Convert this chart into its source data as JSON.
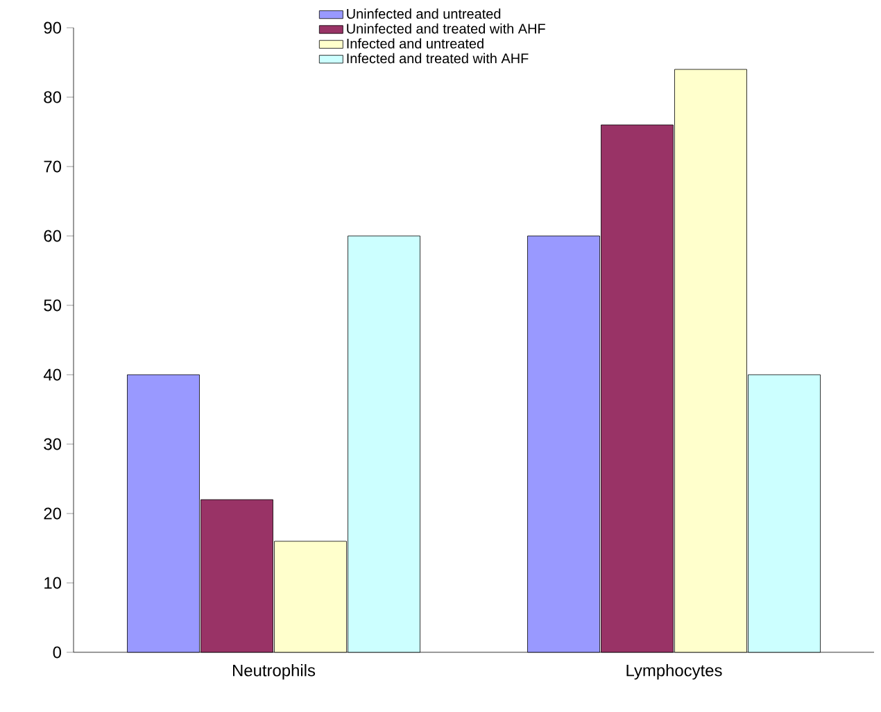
{
  "chart_data": {
    "type": "bar",
    "categories": [
      "Neutrophils",
      "Lymphocytes"
    ],
    "series": [
      {
        "name": "Uninfected and untreated",
        "color": "#9999ff",
        "values": [
          40,
          60
        ]
      },
      {
        "name": "Uninfected and treated with AHF",
        "color": "#993366",
        "values": [
          22,
          76
        ]
      },
      {
        "name": "Infected and untreated",
        "color": "#ffffcc",
        "values": [
          16,
          84
        ]
      },
      {
        "name": "Infected and treated with AHF",
        "color": "#ccffff",
        "values": [
          60,
          40
        ]
      }
    ],
    "ylim": [
      0,
      90
    ],
    "yticks": [
      0,
      10,
      20,
      30,
      40,
      50,
      60,
      70,
      80,
      90
    ],
    "grid": false,
    "legend": "top"
  }
}
